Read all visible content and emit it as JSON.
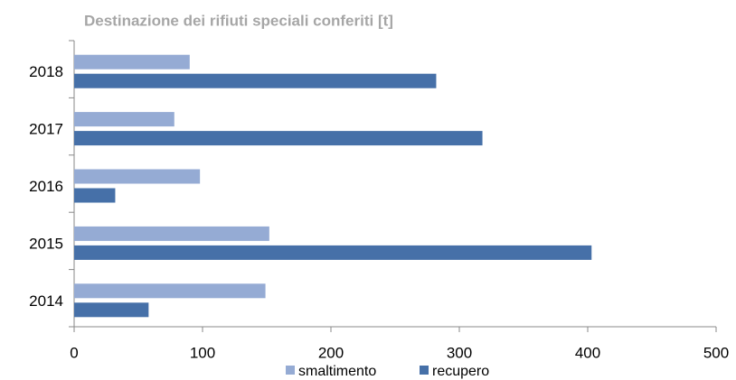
{
  "chart_data": {
    "type": "hbar",
    "title": "Destinazione dei rifiuti speciali conferiti [t]",
    "categories": [
      "2018",
      "2017",
      "2016",
      "2015",
      "2014"
    ],
    "series": [
      {
        "name": "smaltimento",
        "color": "#95abd4",
        "values": [
          90,
          78,
          98,
          152,
          149
        ]
      },
      {
        "name": "recupero",
        "color": "#4670a8",
        "values": [
          282,
          318,
          32,
          403,
          58
        ]
      }
    ],
    "xlim": [
      0,
      500
    ],
    "xticks": [
      0,
      100,
      200,
      300,
      400,
      500
    ],
    "legend": "bottom"
  }
}
